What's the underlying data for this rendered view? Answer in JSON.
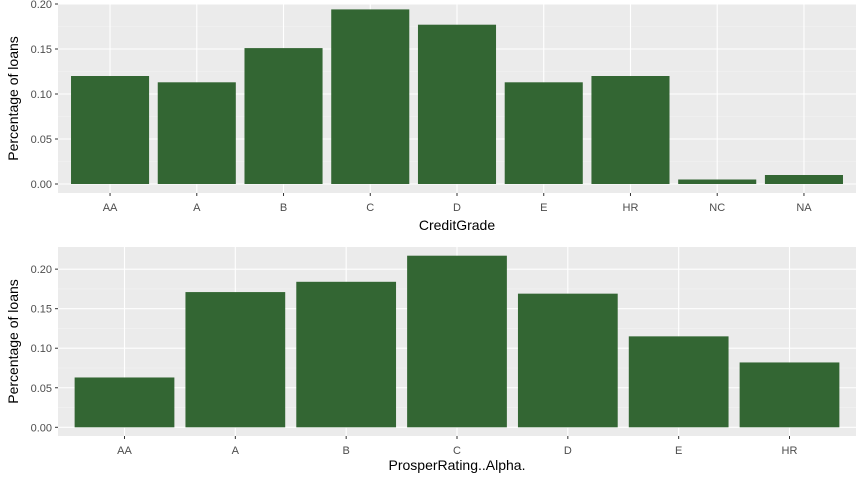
{
  "colors": {
    "bar": "#336633",
    "panel": "#ebebeb",
    "grid_major": "#ffffff",
    "grid_minor": "#f4f4f4",
    "tick_text": "#4d4d4d",
    "axis_text": "#000000"
  },
  "chart_data": [
    {
      "type": "bar",
      "categories": [
        "AA",
        "A",
        "B",
        "C",
        "D",
        "E",
        "HR",
        "NC",
        "NA"
      ],
      "values": [
        0.12,
        0.113,
        0.151,
        0.194,
        0.177,
        0.113,
        0.12,
        0.005,
        0.01
      ],
      "xlabel": "CreditGrade",
      "ylabel": "Percentage of loans",
      "ylim": [
        -0.01,
        0.2
      ],
      "yticks": [
        0.0,
        0.05,
        0.1,
        0.15,
        0.2
      ],
      "ytick_labels": [
        "0.00",
        "0.05",
        "0.10",
        "0.15",
        "0.20"
      ],
      "grid": true,
      "legend": false
    },
    {
      "type": "bar",
      "categories": [
        "AA",
        "A",
        "B",
        "C",
        "D",
        "E",
        "HR"
      ],
      "values": [
        0.063,
        0.171,
        0.184,
        0.217,
        0.169,
        0.115,
        0.082
      ],
      "xlabel": "ProsperRating..Alpha.",
      "ylabel": "Percentage of loans",
      "ylim": [
        -0.011,
        0.228
      ],
      "yticks": [
        0.0,
        0.05,
        0.1,
        0.15,
        0.2
      ],
      "ytick_labels": [
        "0.00",
        "0.05",
        "0.10",
        "0.15",
        "0.20"
      ],
      "grid": true,
      "legend": false
    }
  ]
}
